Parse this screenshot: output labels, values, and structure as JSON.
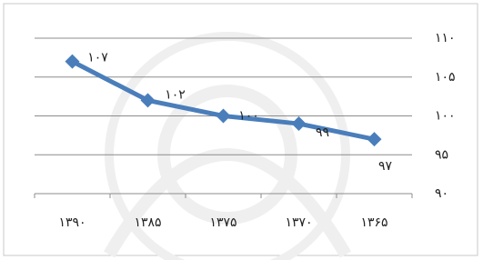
{
  "chart_data": {
    "type": "line",
    "categories": [
      "۱۳۹۰",
      "۱۳۸۵",
      "۱۳۷۵",
      "۱۳۷۰",
      "۱۳۶۵"
    ],
    "series": [
      {
        "color": "#4a7ebb",
        "values": [
          107,
          102,
          100,
          99,
          97
        ],
        "value_labels": [
          "۱۰۷",
          "۱۰۲",
          "۱۰۰",
          "۹۹",
          "۹۷"
        ]
      }
    ],
    "ylim": [
      90,
      110
    ],
    "yticks": [
      {
        "value": 90,
        "label": "۹۰"
      },
      {
        "value": 95,
        "label": "۹۵"
      },
      {
        "value": 100,
        "label": "۱۰۰"
      },
      {
        "value": 105,
        "label": "۱۰۵"
      },
      {
        "value": 110,
        "label": "۱۱۰"
      }
    ],
    "grid": true
  }
}
